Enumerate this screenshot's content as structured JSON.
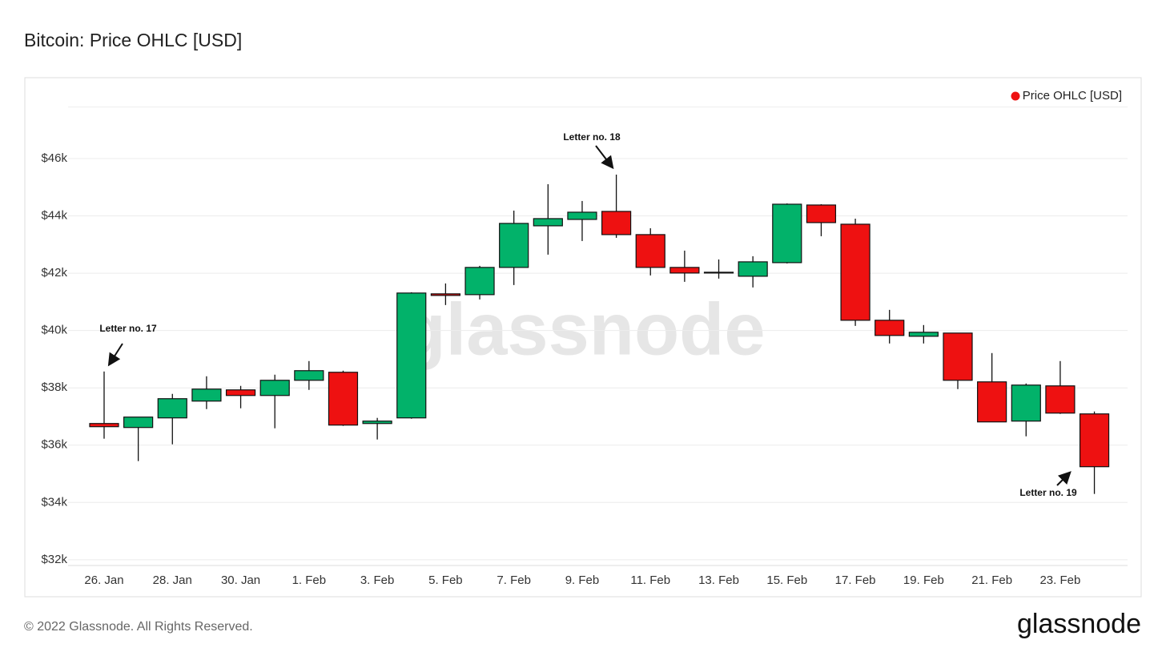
{
  "chart_data": {
    "type": "candlestick",
    "title": "Bitcoin: Price OHLC [USD]",
    "categories": [
      "26. Jan",
      null,
      "28. Jan",
      null,
      "30. Jan",
      null,
      "1. Feb",
      null,
      "3. Feb",
      null,
      "5. Feb",
      null,
      "7. Feb",
      null,
      "9. Feb",
      null,
      "11. Feb",
      null,
      "13. Feb",
      null,
      "15. Feb",
      null,
      "17. Feb",
      null,
      "19. Feb",
      null,
      "21. Feb",
      null,
      "23. Feb",
      null
    ],
    "series": [
      {
        "name": "Price OHLC [USD]",
        "color": "#ee1111",
        "up_color": "#02b26a",
        "down_color": "#ee1111",
        "open": [
          36755,
          36616,
          36951,
          37537,
          37928,
          37733,
          38263,
          38543,
          36755,
          36951,
          41280,
          41252,
          42202,
          43654,
          43877,
          44157,
          43347,
          42202,
          42034,
          41894,
          42369,
          44380,
          43710,
          40358,
          39799,
          39911,
          38208,
          36839,
          38068,
          37090
        ],
        "high": [
          38570,
          36979,
          37789,
          38403,
          38068,
          38459,
          38934,
          38599,
          36951,
          41336,
          41643,
          42257,
          44185,
          45106,
          44520,
          45441,
          43570,
          42788,
          42480,
          42593,
          44436,
          44408,
          43905,
          40721,
          40191,
          39911,
          39213,
          38152,
          38934,
          37174
        ],
        "low": [
          36225,
          35443,
          36029,
          37258,
          37286,
          36588,
          37928,
          36672,
          36197,
          36923,
          40889,
          41084,
          41587,
          42648,
          43123,
          43235,
          41922,
          41699,
          41811,
          41503,
          42341,
          43291,
          40163,
          39548,
          39548,
          37956,
          36811,
          36308,
          37090,
          34297
        ],
        "close": [
          36644,
          36979,
          37621,
          37956,
          37733,
          38263,
          38599,
          36700,
          36839,
          41308,
          41224,
          42202,
          43738,
          43905,
          44129,
          43347,
          42202,
          42006,
          42006,
          42397,
          44408,
          43766,
          40358,
          39827,
          39939,
          38263,
          36811,
          38096,
          37118,
          35247
        ]
      }
    ],
    "ylim": [
      31800,
      47800
    ],
    "yticks": [
      {
        "value": 32000,
        "label": "$32k"
      },
      {
        "value": 34000,
        "label": "$34k"
      },
      {
        "value": 36000,
        "label": "$36k"
      },
      {
        "value": 38000,
        "label": "$38k"
      },
      {
        "value": 40000,
        "label": "$40k"
      },
      {
        "value": 42000,
        "label": "$42k"
      },
      {
        "value": 44000,
        "label": "$44k"
      },
      {
        "value": 46000,
        "label": "$46k"
      }
    ],
    "grid": true,
    "legend": "top-right",
    "annotations": [
      "Letter no. 17",
      "Letter no. 18",
      "Letter no. 19"
    ]
  },
  "footer": {
    "copyright": "© 2022 Glassnode. All Rights Reserved.",
    "logo": "glassnode",
    "watermark": "glassnode"
  }
}
